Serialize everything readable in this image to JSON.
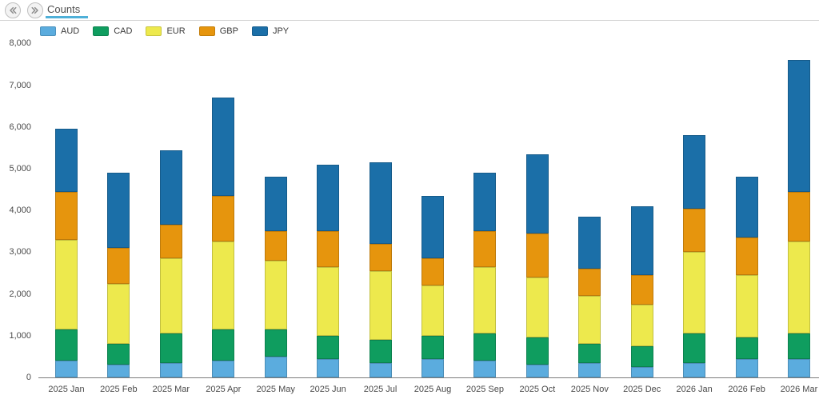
{
  "header": {
    "tab_label": "Counts",
    "nav": {
      "prev_icon": "double-chevron-left",
      "next_icon": "double-chevron-right"
    }
  },
  "colors": {
    "tab_underline": "#4FB0D8",
    "tab_text": "#4F4F4F",
    "header_border": "#D4D4D4",
    "axis_line": "#7C7C7C",
    "axis_text": "#4A4A4A",
    "legend_text": "#3A3A3A",
    "nav_icon": "#8C8C8C"
  },
  "chart_data": {
    "type": "bar",
    "stacked": true,
    "title": "Counts",
    "xlabel": "",
    "ylabel": "",
    "ylim": [
      0,
      8000
    ],
    "ytick_step": 1000,
    "grid": false,
    "legend_position": "top-left",
    "categories": [
      "2025 Jan",
      "2025 Feb",
      "2025 Mar",
      "2025 Apr",
      "2025 May",
      "2025 Jun",
      "2025 Jul",
      "2025 Aug",
      "2025 Sep",
      "2025 Oct",
      "2025 Nov",
      "2025 Dec",
      "2026 Jan",
      "2026 Feb",
      "2026 Mar"
    ],
    "series": [
      {
        "name": "AUD",
        "color": "#5BACDE",
        "values": [
          400,
          300,
          350,
          400,
          500,
          450,
          350,
          450,
          400,
          300,
          350,
          250,
          350,
          450,
          450
        ]
      },
      {
        "name": "CAD",
        "color": "#0F9D5F",
        "values": [
          750,
          500,
          700,
          750,
          650,
          550,
          550,
          550,
          650,
          650,
          450,
          500,
          700,
          500,
          600
        ]
      },
      {
        "name": "EUR",
        "color": "#EDE94D",
        "values": [
          2150,
          1450,
          1800,
          2100,
          1650,
          1650,
          1650,
          1200,
          1600,
          1450,
          1150,
          1000,
          1950,
          1500,
          2200
        ]
      },
      {
        "name": "GBP",
        "color": "#E6950D",
        "values": [
          1150,
          850,
          800,
          1100,
          700,
          850,
          650,
          650,
          850,
          1050,
          650,
          700,
          1050,
          900,
          1200
        ]
      },
      {
        "name": "JPY",
        "color": "#1B6FA8",
        "values": [
          1500,
          1800,
          1800,
          2350,
          1300,
          1600,
          1950,
          1500,
          1400,
          1900,
          1250,
          1650,
          1750,
          1450,
          3150
        ]
      }
    ],
    "totals": [
      5950,
      4900,
      5450,
      6700,
      4800,
      5100,
      5150,
      4350,
      4900,
      5350,
      3850,
      4100,
      5800,
      4800,
      7600
    ]
  }
}
